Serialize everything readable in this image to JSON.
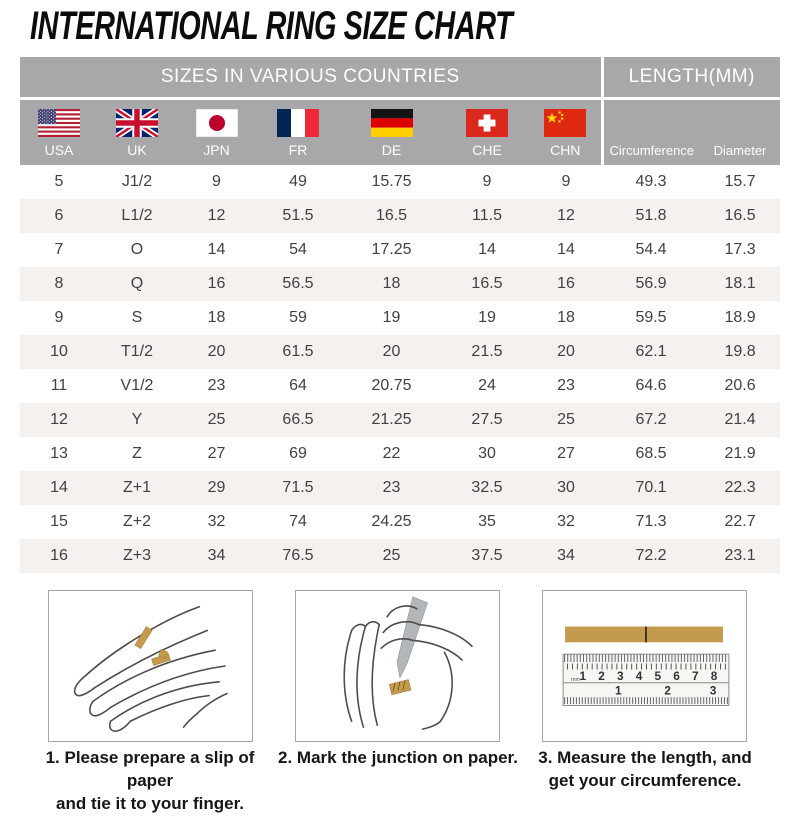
{
  "title": "INTERNATIONAL RING SIZE CHART",
  "colors": {
    "header_bg": "#a8a8aa",
    "alt_row_bg": "#f5f1ee",
    "paper_gold": "#c49a4d"
  },
  "table": {
    "group_header_countries": "SIZES IN VARIOUS COUNTRIES",
    "group_header_length": "LENGTH(MM)",
    "countries": [
      {
        "label": "USA"
      },
      {
        "label": "UK"
      },
      {
        "label": "JPN"
      },
      {
        "label": "FR"
      },
      {
        "label": "DE"
      },
      {
        "label": "CHE"
      },
      {
        "label": "CHN"
      }
    ],
    "length_columns": [
      {
        "label": "Circumference"
      },
      {
        "label": "Diameter"
      }
    ],
    "rows": [
      [
        "5",
        "J1/2",
        "9",
        "49",
        "15.75",
        "9",
        "9",
        "49.3",
        "15.7"
      ],
      [
        "6",
        "L1/2",
        "12",
        "51.5",
        "16.5",
        "11.5",
        "12",
        "51.8",
        "16.5"
      ],
      [
        "7",
        "O",
        "14",
        "54",
        "17.25",
        "14",
        "14",
        "54.4",
        "17.3"
      ],
      [
        "8",
        "Q",
        "16",
        "56.5",
        "18",
        "16.5",
        "16",
        "56.9",
        "18.1"
      ],
      [
        "9",
        "S",
        "18",
        "59",
        "19",
        "19",
        "18",
        "59.5",
        "18.9"
      ],
      [
        "10",
        "T1/2",
        "20",
        "61.5",
        "20",
        "21.5",
        "20",
        "62.1",
        "19.8"
      ],
      [
        "11",
        "V1/2",
        "23",
        "64",
        "20.75",
        "24",
        "23",
        "64.6",
        "20.6"
      ],
      [
        "12",
        "Y",
        "25",
        "66.5",
        "21.25",
        "27.5",
        "25",
        "67.2",
        "21.4"
      ],
      [
        "13",
        "Z",
        "27",
        "69",
        "22",
        "30",
        "27",
        "68.5",
        "21.9"
      ],
      [
        "14",
        "Z+1",
        "29",
        "71.5",
        "23",
        "32.5",
        "30",
        "70.1",
        "22.3"
      ],
      [
        "15",
        "Z+2",
        "32",
        "74",
        "24.25",
        "35",
        "32",
        "71.3",
        "22.7"
      ],
      [
        "16",
        "Z+3",
        "34",
        "76.5",
        "25",
        "37.5",
        "34",
        "72.2",
        "23.1"
      ]
    ]
  },
  "steps": [
    {
      "caption_line1": "1. Please prepare a slip of paper",
      "caption_line2": "and tie it to your finger."
    },
    {
      "caption_line1": "2. Mark the junction on paper.",
      "caption_line2": ""
    },
    {
      "caption_line1": "3. Measure the length, and",
      "caption_line2": "get your circumference."
    }
  ],
  "ruler": {
    "unit_label": "mm",
    "cm_labels": [
      "1",
      "2",
      "3",
      "4",
      "5",
      "6",
      "7",
      "8"
    ],
    "inch_labels": [
      "1",
      "2",
      "3"
    ]
  }
}
